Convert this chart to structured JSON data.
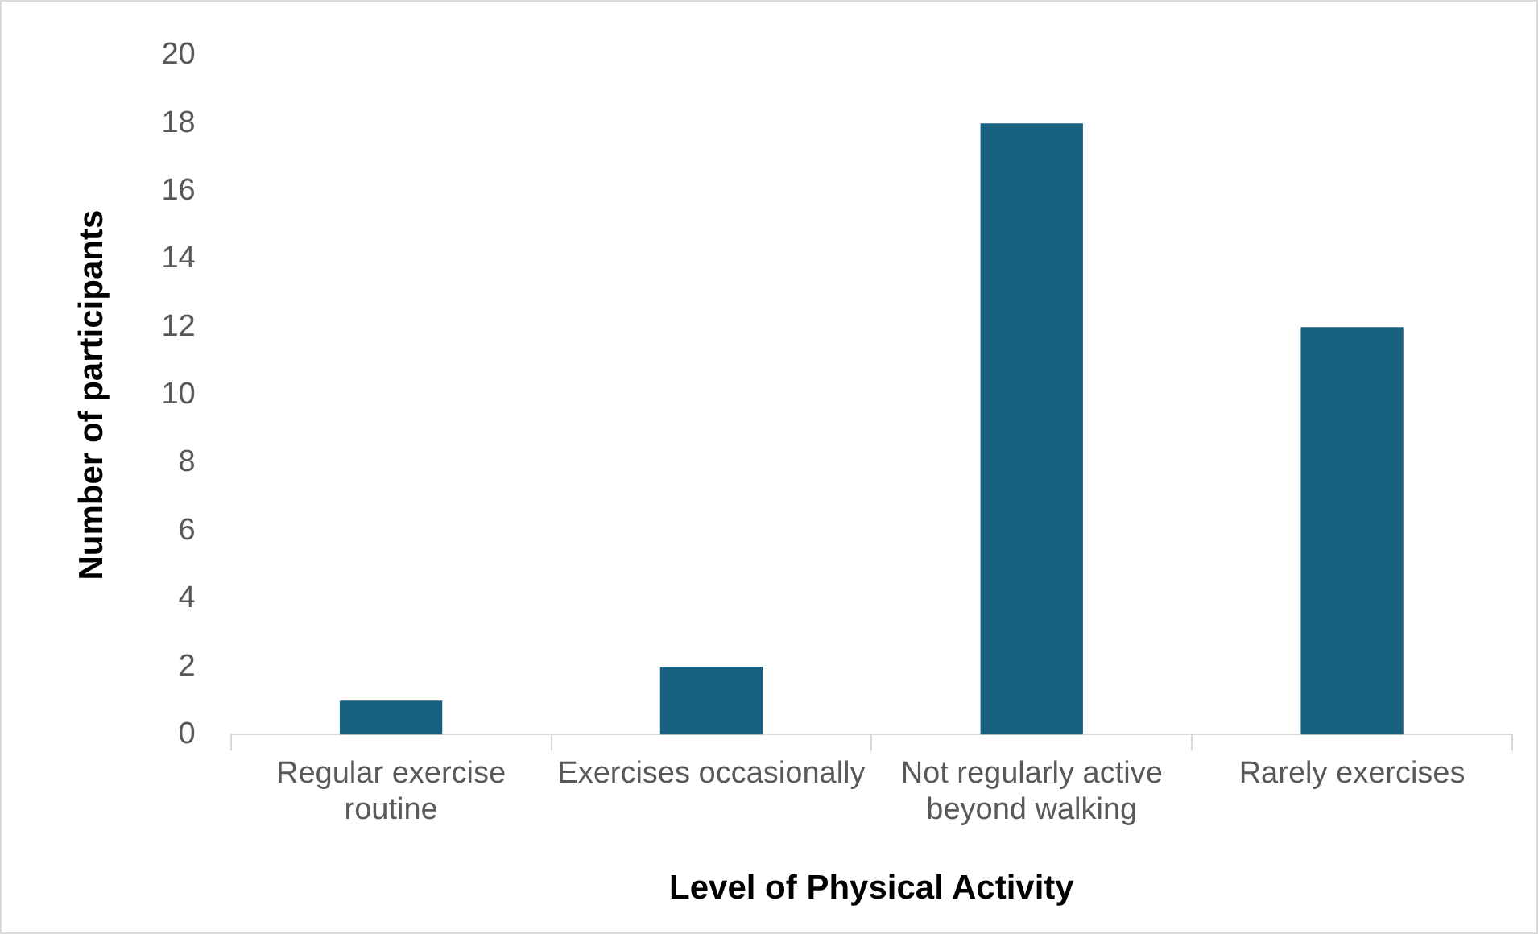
{
  "chart_data": {
    "type": "bar",
    "xlabel": "Level of Physical Activity",
    "ylabel": "Number of participants",
    "categories": [
      "Regular exercise routine",
      "Exercises occasionally",
      "Not regularly active beyond walking",
      "Rarely exercises"
    ],
    "values": [
      1,
      2,
      18,
      12
    ],
    "color": "#17607f",
    "ylim": [
      0,
      20
    ],
    "yticks": [
      0,
      2,
      4,
      6,
      8,
      10,
      12,
      14,
      16,
      18,
      20
    ],
    "grid": false,
    "legend": false
  }
}
